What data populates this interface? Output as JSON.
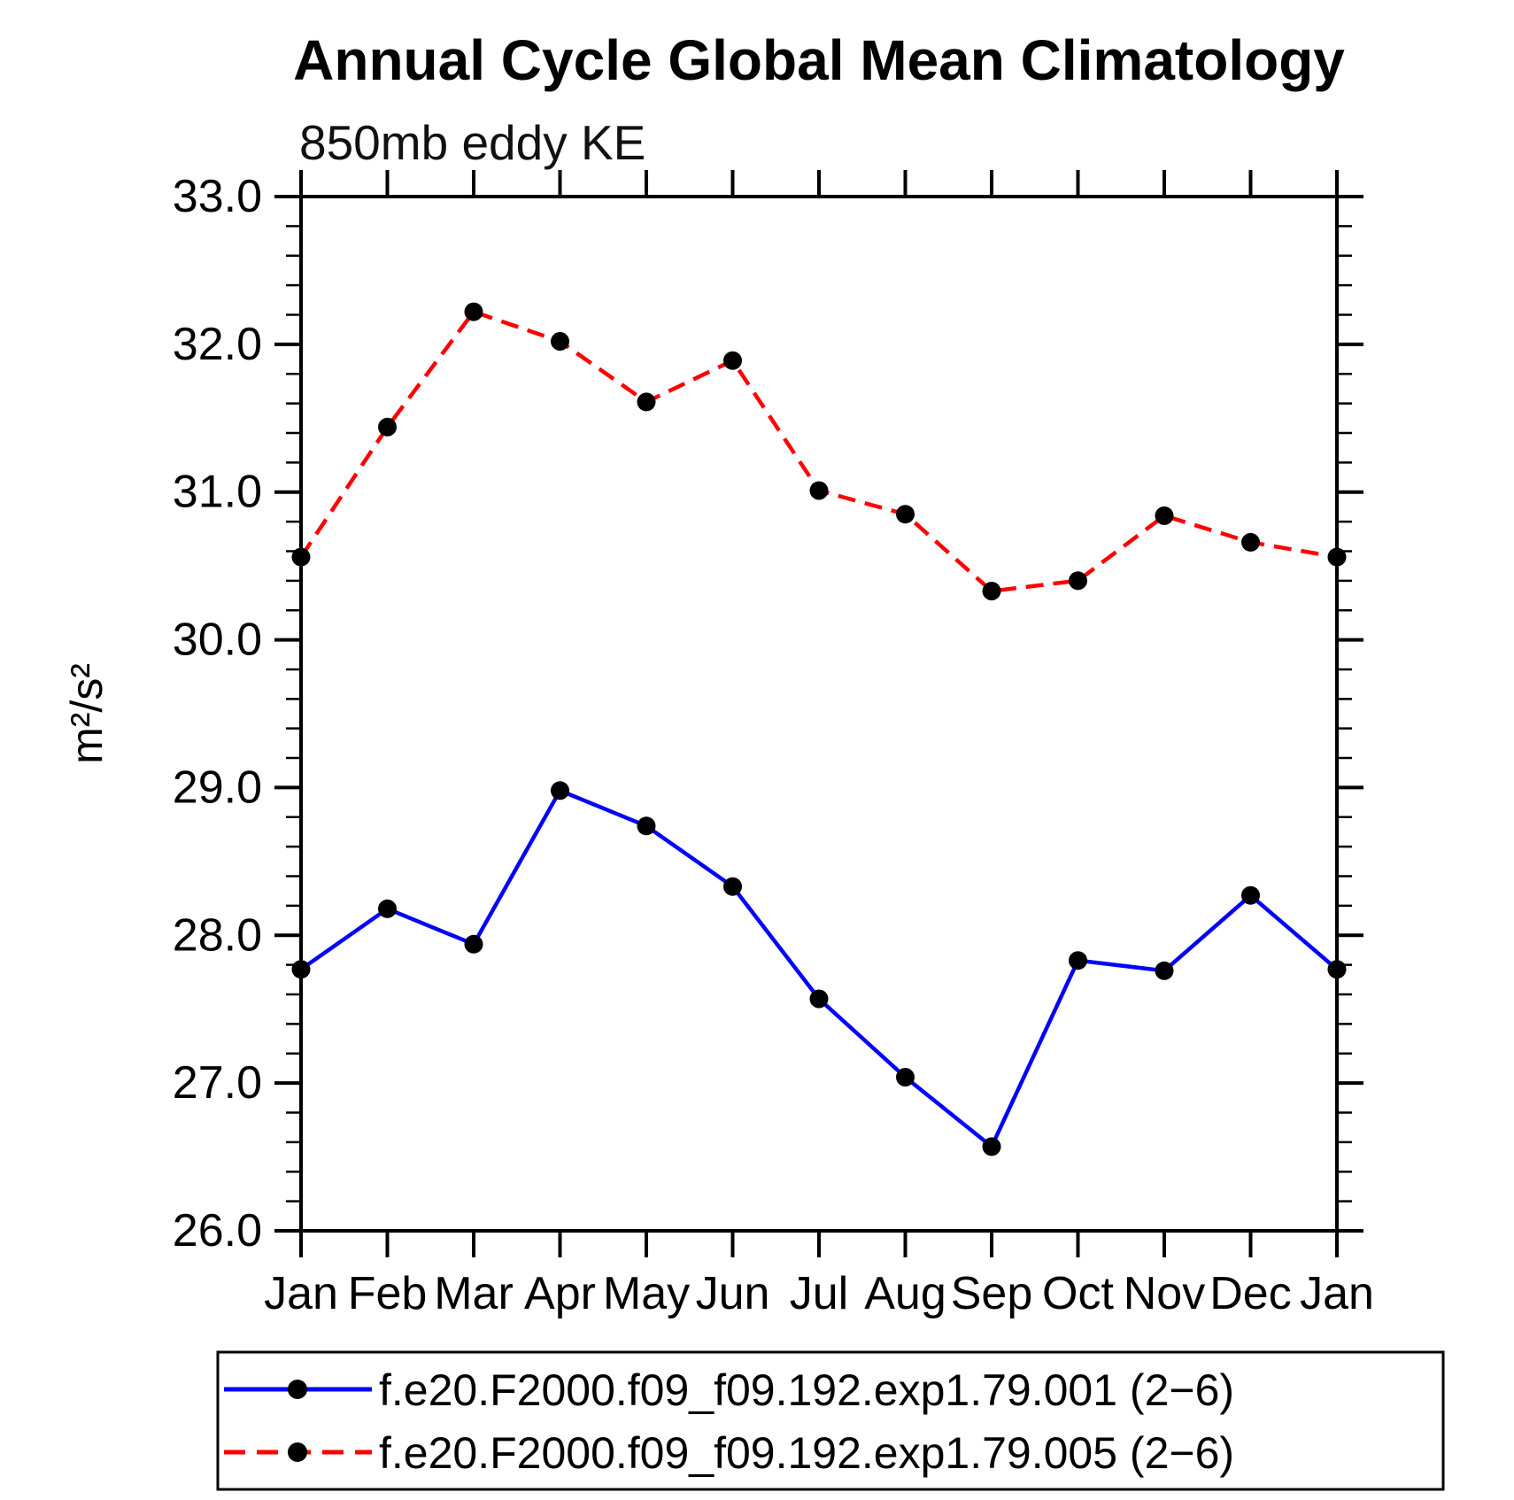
{
  "header": {
    "title": "Annual Cycle Global Mean Climatology",
    "subtitle": "850mb eddy KE"
  },
  "chart_data": {
    "type": "line",
    "title": "Annual Cycle Global Mean Climatology",
    "subtitle": "850mb eddy KE",
    "xlabel": "",
    "ylabel": "m²/s²",
    "categories": [
      "Jan",
      "Feb",
      "Mar",
      "Apr",
      "May",
      "Jun",
      "Jul",
      "Aug",
      "Sep",
      "Oct",
      "Nov",
      "Dec",
      "Jan"
    ],
    "ylim": [
      26.0,
      33.0
    ],
    "ytick_interval": 1.0,
    "yminor_interval": 0.2,
    "ytick_labels": [
      "26.0",
      "27.0",
      "28.0",
      "29.0",
      "30.0",
      "31.0",
      "32.0",
      "33.0"
    ],
    "grid": false,
    "legend_position": "bottom",
    "frame_color": "#000000",
    "marker": {
      "shape": "circle",
      "color": "#000000"
    },
    "series": [
      {
        "name": "f.e20.F2000.f09_f09.192.exp1.79.001 (2−6)",
        "color": "#0000ff",
        "style": "solid",
        "values": [
          27.77,
          28.18,
          27.94,
          28.98,
          28.74,
          28.33,
          27.57,
          27.04,
          26.57,
          27.83,
          27.76,
          28.27,
          27.77
        ]
      },
      {
        "name": "f.e20.F2000.f09_f09.192.exp1.79.005 (2−6)",
        "color": "#ff0000",
        "style": "dashed",
        "values": [
          30.56,
          31.44,
          32.22,
          32.02,
          31.61,
          31.89,
          31.01,
          30.85,
          30.33,
          30.4,
          30.84,
          30.66,
          30.56
        ]
      }
    ]
  }
}
